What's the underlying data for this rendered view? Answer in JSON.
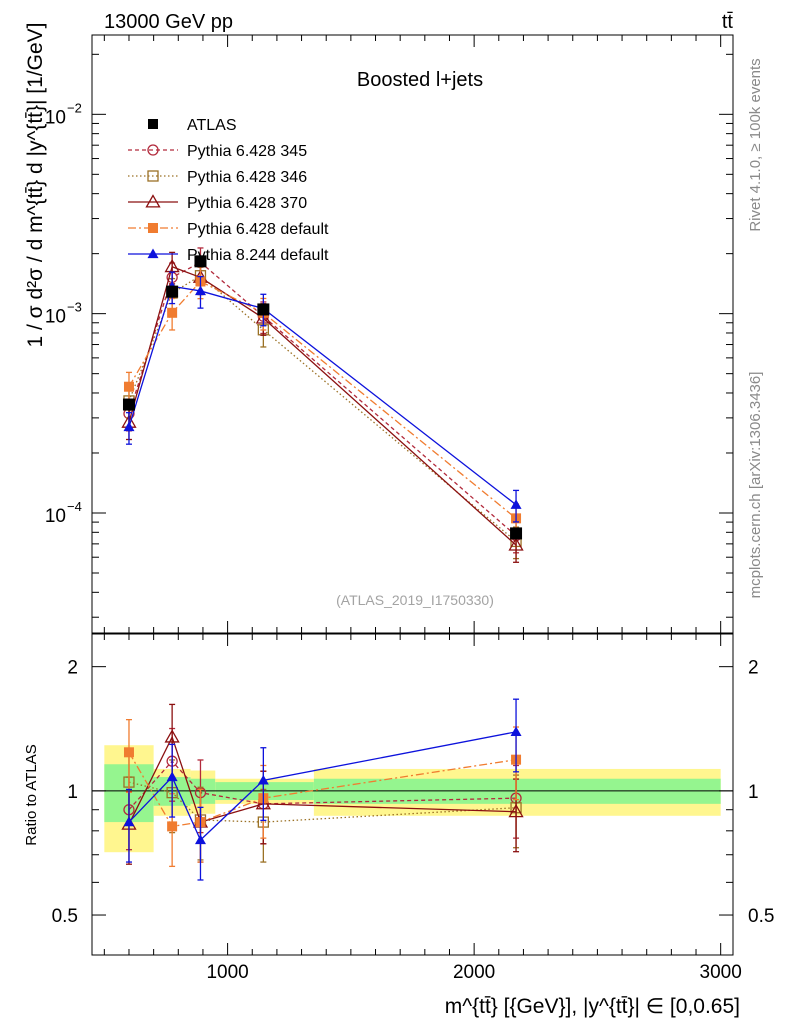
{
  "header": {
    "left": "13000 GeV pp",
    "right": "tt̄"
  },
  "side": {
    "rivet": "Rivet 4.1.0, ≥ 100k events",
    "mcplots": "mcplots.cern.ch [arXiv:1306.3436]"
  },
  "chart_data": {
    "type": "scatter",
    "title": "Boosted l+jets",
    "analysis_id": "(ATLAS_2019_I1750330)",
    "xlabel": "m^{tt̄} [{GeV}], |y^{tt̄}| ∈ [0,0.65]",
    "ylabel": "1 / σ d²σ / d m^{tt̄} d |y^{tt̄}| [1/GeV]",
    "ratio_ylabel": "Ratio to ATLAS",
    "xlim": [
      450,
      3050
    ],
    "ylim": [
      2.5e-05,
      0.025
    ],
    "ratio_ylim": [
      0.4,
      2.4
    ],
    "xticks": [
      1000,
      2000,
      3000
    ],
    "xtick_labels": [
      "1000",
      "2000",
      "3000"
    ],
    "yticks": [
      0.0001,
      0.001,
      0.01
    ],
    "ytick_labels": [
      "10",
      "10",
      "10"
    ],
    "ytick_exponents": [
      "−4",
      "−3",
      "−2"
    ],
    "ratio_yticks": [
      0.5,
      1,
      2
    ],
    "ratio_ytick_labels": [
      "0.5",
      "1",
      "2"
    ],
    "x": [
      600,
      775,
      890,
      1145,
      2170
    ],
    "bins": [
      [
        500,
        700
      ],
      [
        700,
        850
      ],
      [
        850,
        950
      ],
      [
        950,
        1350
      ],
      [
        1350,
        3000
      ]
    ],
    "band_inner": [
      0.16,
      0.08,
      0.07,
      0.05,
      0.07
    ],
    "band_outer": [
      0.29,
      0.13,
      0.12,
      0.07,
      0.13
    ],
    "series": [
      {
        "name": "ATLAS",
        "color": "#000000",
        "marker": "filled-square",
        "dash": "none",
        "values": [
          0.00035,
          0.00129,
          0.00183,
          0.00105,
          7.9e-05
        ],
        "ratio": [
          1,
          1,
          1,
          1,
          1
        ]
      },
      {
        "name": "Pythia 6.428 345",
        "color": "#b22a3c",
        "marker": "open-circle",
        "dash": "4,3",
        "values": [
          0.000315,
          0.00152,
          0.00181,
          0.00097,
          7.7e-05
        ],
        "ratio": [
          0.9,
          1.18,
          0.99,
          0.93,
          0.96
        ]
      },
      {
        "name": "Pythia 6.428 346",
        "color": "#9b7125",
        "marker": "open-square",
        "dash": "1.5,2.5",
        "values": [
          0.000365,
          0.00127,
          0.00155,
          0.00083,
          7.2e-05
        ],
        "ratio": [
          1.05,
          0.99,
          0.85,
          0.84,
          0.91
        ]
      },
      {
        "name": "Pythia 6.428 370",
        "color": "#8b1010",
        "marker": "open-triangle",
        "dash": "none",
        "values": [
          0.000285,
          0.00172,
          0.00152,
          0.00095,
          6.9e-05
        ],
        "ratio": [
          0.83,
          1.35,
          0.84,
          0.93,
          0.89
        ]
      },
      {
        "name": "Pythia 6.428 default",
        "color": "#f07c30",
        "marker": "filled-square",
        "dash": "8,3,2,3",
        "values": [
          0.00043,
          0.00101,
          0.00145,
          0.00101,
          9.4e-05
        ],
        "ratio": [
          1.24,
          0.82,
          0.84,
          0.96,
          1.19
        ]
      },
      {
        "name": "Pythia 8.244 default",
        "color": "#0d12dc",
        "marker": "filled-triangle",
        "dash": "none",
        "values": [
          0.00027,
          0.00137,
          0.0013,
          0.00106,
          0.00011
        ],
        "ratio": [
          0.84,
          1.08,
          0.76,
          1.06,
          1.39
        ]
      }
    ]
  }
}
